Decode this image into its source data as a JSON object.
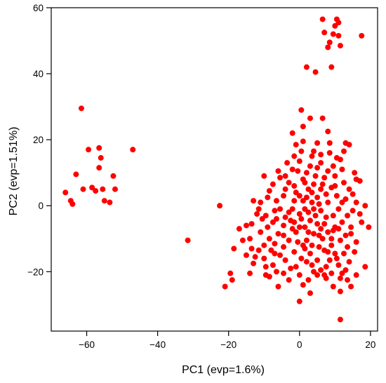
{
  "chart_data": {
    "type": "scatter",
    "xlabel": "PC1 (evp=1.6%)",
    "ylabel": "PC2 (evp=1.51%)",
    "xlim": [
      -70,
      22
    ],
    "ylim": [
      -38,
      60
    ],
    "xticks": [
      -60,
      -40,
      -20,
      0,
      20
    ],
    "yticks": [
      -20,
      0,
      20,
      40,
      60
    ],
    "xtick_labels": [
      "−60",
      "−40",
      "−20",
      "0",
      "20"
    ],
    "ytick_labels": [
      "−20",
      "0",
      "20",
      "40",
      "60"
    ],
    "grid": false,
    "marker_color": "#ff0000",
    "series": [
      {
        "points": [
          [
            -61.5,
            29.5
          ],
          [
            -59.5,
            17.0
          ],
          [
            -56.5,
            17.5
          ],
          [
            -56.0,
            14.5
          ],
          [
            -56.5,
            11.5
          ],
          [
            -63.0,
            9.5
          ],
          [
            -52.5,
            9.0
          ],
          [
            -64.5,
            1.5
          ],
          [
            -66.0,
            4.0
          ],
          [
            -64.0,
            0.5
          ],
          [
            -61.0,
            5.0
          ],
          [
            -58.5,
            5.5
          ],
          [
            -57.5,
            4.5
          ],
          [
            -55.5,
            5.0
          ],
          [
            -52.0,
            5.0
          ],
          [
            -55.0,
            1.5
          ],
          [
            -53.5,
            1.0
          ],
          [
            -47.0,
            17.0
          ],
          [
            -31.5,
            -10.5
          ],
          [
            -22.5,
            0.0
          ],
          [
            6.5,
            56.5
          ],
          [
            10.5,
            56.5
          ],
          [
            11.0,
            55.5
          ],
          [
            10.0,
            54.5
          ],
          [
            7.0,
            52.5
          ],
          [
            9.5,
            52.0
          ],
          [
            11.0,
            51.5
          ],
          [
            17.5,
            51.5
          ],
          [
            8.5,
            49.5
          ],
          [
            8.0,
            48.0
          ],
          [
            11.5,
            48.5
          ],
          [
            2.0,
            42.0
          ],
          [
            4.5,
            40.5
          ],
          [
            9.0,
            42.0
          ],
          [
            0.5,
            29.0
          ],
          [
            3.0,
            26.5
          ],
          [
            6.5,
            26.5
          ],
          [
            -2.0,
            22.0
          ],
          [
            1.0,
            24.0
          ],
          [
            8.0,
            22.5
          ],
          [
            5.0,
            19.0
          ],
          [
            -1.0,
            18.5
          ],
          [
            1.0,
            19.5
          ],
          [
            13.0,
            19.0
          ],
          [
            14.0,
            18.5
          ],
          [
            4.0,
            16.5
          ],
          [
            8.5,
            16.0
          ],
          [
            -1.5,
            15.0
          ],
          [
            6.0,
            15.5
          ],
          [
            11.5,
            14.0
          ],
          [
            0.0,
            13.5
          ],
          [
            3.0,
            12.0
          ],
          [
            -2.0,
            11.0
          ],
          [
            5.0,
            11.5
          ],
          [
            9.5,
            12.0
          ],
          [
            2.0,
            10.0
          ],
          [
            12.0,
            11.0
          ],
          [
            15.5,
            10.0
          ],
          [
            -4.0,
            9.0
          ],
          [
            -10.0,
            9.0
          ],
          [
            -5.5,
            8.5
          ],
          [
            1.0,
            8.0
          ],
          [
            7.0,
            8.5
          ],
          [
            10.0,
            9.0
          ],
          [
            16.0,
            8.0
          ],
          [
            17.0,
            7.5
          ],
          [
            -3.0,
            7.0
          ],
          [
            4.0,
            6.5
          ],
          [
            12.5,
            7.0
          ],
          [
            -8.5,
            4.5
          ],
          [
            -1.0,
            4.0
          ],
          [
            2.5,
            5.0
          ],
          [
            6.0,
            5.0
          ],
          [
            9.0,
            5.5
          ],
          [
            14.0,
            5.0
          ],
          [
            -4.5,
            3.0
          ],
          [
            0.0,
            3.0
          ],
          [
            5.0,
            2.5
          ],
          [
            10.5,
            3.0
          ],
          [
            13.0,
            2.0
          ],
          [
            -13.0,
            1.5
          ],
          [
            -11.0,
            1.0
          ],
          [
            -6.5,
            1.5
          ],
          [
            3.5,
            1.0
          ],
          [
            8.0,
            1.0
          ],
          [
            16.0,
            1.0
          ],
          [
            18.5,
            0.0
          ],
          [
            -11.5,
            -1.0
          ],
          [
            -7.0,
            -1.5
          ],
          [
            -2.0,
            -1.0
          ],
          [
            1.5,
            -1.0
          ],
          [
            6.0,
            -1.5
          ],
          [
            11.0,
            -1.0
          ],
          [
            15.0,
            -1.5
          ],
          [
            -9.5,
            -3.0
          ],
          [
            -4.0,
            -3.5
          ],
          [
            0.0,
            -2.5
          ],
          [
            4.5,
            -3.0
          ],
          [
            9.5,
            -3.0
          ],
          [
            13.5,
            -3.0
          ],
          [
            -7.5,
            -5.0
          ],
          [
            -1.5,
            -5.0
          ],
          [
            3.0,
            -4.5
          ],
          [
            7.0,
            -5.5
          ],
          [
            12.0,
            -5.0
          ],
          [
            -13.5,
            -5.5
          ],
          [
            -15.0,
            -6.0
          ],
          [
            -9.0,
            -6.5
          ],
          [
            -4.5,
            -6.0
          ],
          [
            1.5,
            -6.5
          ],
          [
            10.0,
            -6.5
          ],
          [
            14.5,
            -6.5
          ],
          [
            19.5,
            -6.5
          ],
          [
            -11.0,
            -8.0
          ],
          [
            -6.0,
            -8.5
          ],
          [
            -1.0,
            -8.0
          ],
          [
            4.0,
            -8.5
          ],
          [
            8.0,
            -8.0
          ],
          [
            -14.0,
            -10.0
          ],
          [
            -8.5,
            -10.0
          ],
          [
            -3.0,
            -10.5
          ],
          [
            2.0,
            -10.5
          ],
          [
            6.5,
            -10.0
          ],
          [
            11.5,
            -10.5
          ],
          [
            -10.0,
            -12.0
          ],
          [
            -4.5,
            -12.5
          ],
          [
            1.0,
            -12.0
          ],
          [
            5.5,
            -12.5
          ],
          [
            9.0,
            -12.0
          ],
          [
            13.5,
            -12.5
          ],
          [
            -18.5,
            -13.0
          ],
          [
            -13.5,
            -13.0
          ],
          [
            -11.5,
            -13.5
          ],
          [
            -7.0,
            -14.5
          ],
          [
            -1.5,
            -14.0
          ],
          [
            3.0,
            -14.5
          ],
          [
            8.0,
            -14.0
          ],
          [
            12.5,
            -14.5
          ],
          [
            -15.0,
            -15.0
          ],
          [
            -12.5,
            -15.5
          ],
          [
            -10.0,
            -16.0
          ],
          [
            -4.0,
            -16.5
          ],
          [
            0.5,
            -16.0
          ],
          [
            5.0,
            -16.5
          ],
          [
            10.5,
            -16.0
          ],
          [
            14.0,
            -17.0
          ],
          [
            -13.0,
            -17.5
          ],
          [
            -7.5,
            -18.0
          ],
          [
            -1.0,
            -18.5
          ],
          [
            3.5,
            -18.0
          ],
          [
            7.5,
            -18.5
          ],
          [
            11.0,
            -18.0
          ],
          [
            -14.0,
            -20.5
          ],
          [
            -9.5,
            -21.0
          ],
          [
            -4.5,
            -20.5
          ],
          [
            0.0,
            -21.0
          ],
          [
            5.0,
            -21.0
          ],
          [
            9.0,
            -20.5
          ],
          [
            12.0,
            -20.5
          ],
          [
            -19.5,
            -20.5
          ],
          [
            -19.0,
            -22.5
          ],
          [
            -8.5,
            -21.5
          ],
          [
            -3.0,
            -22.5
          ],
          [
            2.5,
            -22.5
          ],
          [
            7.5,
            -22.0
          ],
          [
            11.5,
            -22.0
          ],
          [
            13.5,
            -22.5
          ],
          [
            -21.0,
            -24.5
          ],
          [
            -6.0,
            -24.5
          ],
          [
            1.0,
            -24.0
          ],
          [
            9.5,
            -24.5
          ],
          [
            14.5,
            -24.5
          ],
          [
            3.0,
            -26.5
          ],
          [
            11.5,
            -26.0
          ],
          [
            0.0,
            -29.0
          ],
          [
            11.5,
            -34.5
          ],
          [
            18.5,
            -18.5
          ],
          [
            16.0,
            -11.0
          ],
          [
            17.5,
            -5.0
          ],
          [
            15.0,
            3.5
          ],
          [
            17.0,
            -2.5
          ],
          [
            7.0,
            -21.0
          ],
          [
            6.0,
            -19.5
          ],
          [
            4.0,
            -20.0
          ],
          [
            -2.5,
            -19.0
          ],
          [
            -5.5,
            -15.0
          ],
          [
            -8.0,
            -13.5
          ],
          [
            -2.0,
            -7.0
          ],
          [
            0.5,
            -4.0
          ],
          [
            2.5,
            -2.0
          ],
          [
            5.5,
            0.5
          ],
          [
            7.5,
            3.5
          ],
          [
            3.5,
            4.0
          ],
          [
            -1.5,
            6.0
          ],
          [
            1.5,
            7.0
          ],
          [
            4.5,
            9.0
          ],
          [
            8.0,
            10.5
          ],
          [
            6.0,
            13.0
          ],
          [
            3.5,
            15.0
          ],
          [
            0.5,
            16.5
          ],
          [
            10.5,
            14.5
          ],
          [
            12.5,
            16.5
          ],
          [
            8.5,
            19.0
          ],
          [
            -3.5,
            13.0
          ],
          [
            -6.0,
            10.5
          ],
          [
            -7.5,
            6.5
          ],
          [
            -9.0,
            2.5
          ],
          [
            -5.5,
            -1.0
          ],
          [
            -3.0,
            -2.0
          ],
          [
            1.0,
            1.5
          ],
          [
            4.0,
            -1.0
          ],
          [
            7.5,
            -3.5
          ],
          [
            9.5,
            -7.5
          ],
          [
            6.0,
            -7.0
          ],
          [
            2.5,
            -8.0
          ],
          [
            -0.5,
            -11.0
          ],
          [
            3.5,
            -12.0
          ],
          [
            7.0,
            -13.5
          ],
          [
            10.0,
            -14.5
          ],
          [
            -4.5,
            -9.0
          ],
          [
            -10.5,
            -4.0
          ],
          [
            -12.0,
            -2.5
          ],
          [
            -6.5,
            -4.0
          ],
          [
            12.0,
            1.0
          ],
          [
            14.5,
            -8.5
          ],
          [
            15.5,
            -14.0
          ],
          [
            13.0,
            -19.5
          ],
          [
            16.0,
            -21.0
          ],
          [
            -16.0,
            -10.5
          ],
          [
            -17.0,
            -7.0
          ],
          [
            -9.5,
            -18.5
          ],
          [
            -6.5,
            -20.0
          ],
          [
            2.0,
            -17.0
          ],
          [
            8.5,
            -16.5
          ],
          [
            13.0,
            -9.0
          ],
          [
            11.0,
            -7.0
          ],
          [
            5.0,
            -5.5
          ],
          [
            0.0,
            -6.5
          ],
          [
            -2.5,
            -4.5
          ],
          [
            2.0,
            2.5
          ],
          [
            6.5,
            6.5
          ],
          [
            10.0,
            6.0
          ],
          [
            -0.5,
            10.5
          ],
          [
            -4.0,
            5.0
          ],
          [
            -1.5,
            1.5
          ],
          [
            5.5,
            -9.0
          ],
          [
            9.0,
            -10.0
          ],
          [
            -7.0,
            -11.5
          ],
          [
            1.5,
            -13.0
          ]
        ]
      }
    ]
  }
}
